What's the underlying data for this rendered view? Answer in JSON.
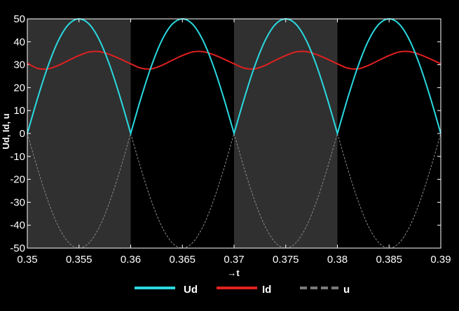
{
  "chart_data": {
    "type": "line",
    "title": "",
    "xlabel": "→t",
    "ylabel": "Ud, Id, u",
    "xlim": [
      0.35,
      0.39
    ],
    "ylim": [
      -50,
      50
    ],
    "xticks": [
      0.35,
      0.355,
      0.36,
      0.365,
      0.37,
      0.375,
      0.38,
      0.385,
      0.39
    ],
    "xtick_labels": [
      "0.35",
      "0.355",
      "0.36",
      "0.365",
      "0.37",
      "0.375",
      "0.38",
      "0.385",
      "0.39"
    ],
    "yticks": [
      50,
      40,
      30,
      20,
      10,
      0,
      -10,
      -20,
      -30,
      -40,
      -50
    ],
    "ytick_labels": [
      "50",
      "40",
      "30",
      "20",
      "10",
      "0",
      "-10",
      "-20",
      "-30",
      "-40",
      "-50"
    ],
    "grid": false,
    "background": "#000000",
    "shaded_regions": [
      {
        "x0": 0.35,
        "x1": 0.36,
        "color": "#303030"
      },
      {
        "x0": 0.37,
        "x1": 0.38,
        "color": "#303030"
      }
    ],
    "legend": {
      "placement": "bottom"
    },
    "series": [
      {
        "name": "Ud",
        "color": "#2ad9e0",
        "style": "solid",
        "x": [
          0.35,
          0.351,
          0.352,
          0.353,
          0.354,
          0.355,
          0.356,
          0.357,
          0.358,
          0.359,
          0.36,
          0.361,
          0.362,
          0.363,
          0.364,
          0.365,
          0.366,
          0.367,
          0.368,
          0.369,
          0.37,
          0.371,
          0.372,
          0.373,
          0.374,
          0.375,
          0.376,
          0.377,
          0.378,
          0.379,
          0.38,
          0.381,
          0.382,
          0.383,
          0.384,
          0.385,
          0.386,
          0.387,
          0.388,
          0.389,
          0.39
        ],
        "y": [
          0,
          15.5,
          29.4,
          40.5,
          47.6,
          50,
          47.6,
          40.5,
          29.4,
          15.5,
          0,
          15.5,
          29.4,
          40.5,
          47.6,
          50,
          47.6,
          40.5,
          29.4,
          15.5,
          0,
          15.5,
          29.4,
          40.5,
          47.6,
          50,
          47.6,
          40.5,
          29.4,
          15.5,
          0,
          15.5,
          29.4,
          40.5,
          47.6,
          50,
          47.6,
          40.5,
          29.4,
          15.5,
          0
        ]
      },
      {
        "name": "Id",
        "color": "#e02020",
        "style": "solid",
        "x": [
          0.35,
          0.351,
          0.352,
          0.353,
          0.354,
          0.355,
          0.356,
          0.357,
          0.358,
          0.359,
          0.36,
          0.361,
          0.362,
          0.363,
          0.364,
          0.365,
          0.366,
          0.367,
          0.368,
          0.369,
          0.37,
          0.371,
          0.372,
          0.373,
          0.374,
          0.375,
          0.376,
          0.377,
          0.378,
          0.379,
          0.38,
          0.381,
          0.382,
          0.383,
          0.384,
          0.385,
          0.386,
          0.387,
          0.388,
          0.389,
          0.39
        ],
        "y": [
          30.7,
          28.4,
          28.2,
          29.7,
          31.9,
          34.0,
          35.6,
          35.7,
          34.4,
          32.5,
          30.4,
          28.5,
          28.2,
          29.7,
          31.9,
          34.0,
          35.6,
          35.7,
          34.4,
          32.5,
          30.4,
          28.5,
          28.2,
          29.7,
          31.9,
          34.0,
          35.6,
          35.7,
          34.4,
          32.5,
          30.4,
          28.5,
          28.2,
          29.7,
          31.9,
          34.0,
          35.6,
          35.7,
          34.4,
          32.5,
          30.4
        ]
      },
      {
        "name": "u",
        "color": "#8a8a8a",
        "style": "dashed",
        "x": [
          0.35,
          0.351,
          0.352,
          0.353,
          0.354,
          0.355,
          0.356,
          0.357,
          0.358,
          0.359,
          0.36,
          0.361,
          0.362,
          0.363,
          0.364,
          0.365,
          0.366,
          0.367,
          0.368,
          0.369,
          0.37,
          0.371,
          0.372,
          0.373,
          0.374,
          0.375,
          0.376,
          0.377,
          0.378,
          0.379,
          0.38,
          0.381,
          0.382,
          0.383,
          0.384,
          0.385,
          0.386,
          0.387,
          0.388,
          0.389,
          0.39
        ],
        "y": [
          0,
          -15.5,
          -29.4,
          -40.5,
          -47.6,
          -50,
          -47.6,
          -40.5,
          -29.4,
          -15.5,
          0,
          -15.5,
          -29.4,
          -40.5,
          -47.6,
          -50,
          -47.6,
          -40.5,
          -29.4,
          -15.5,
          0,
          -15.5,
          -29.4,
          -40.5,
          -47.6,
          -50,
          -47.6,
          -40.5,
          -29.4,
          -15.5,
          0,
          -15.5,
          -29.4,
          -40.5,
          -47.6,
          -50,
          -47.6,
          -40.5,
          -29.4,
          -15.5,
          0
        ]
      }
    ]
  }
}
